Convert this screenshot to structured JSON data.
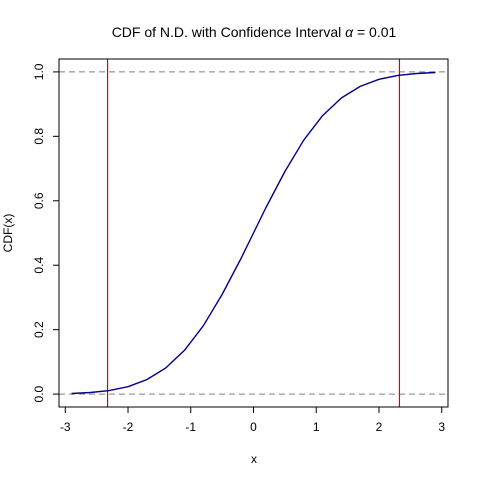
{
  "chart_data": {
    "type": "line",
    "title_prefix": "CDF of N.D. with Confidence Interval ",
    "title_symbol": "α",
    "title_suffix": " = 0.01",
    "xlabel": "x",
    "ylabel": "CDF(x)",
    "xlim": [
      -3.1,
      3.1
    ],
    "ylim": [
      -0.04,
      1.04
    ],
    "x_ticks": [
      -3,
      -2,
      -1,
      0,
      1,
      2,
      3
    ],
    "x_tick_labels": [
      "-3",
      "-2",
      "-1",
      "0",
      "1",
      "2",
      "3"
    ],
    "y_ticks": [
      0.0,
      0.2,
      0.4,
      0.6,
      0.8,
      1.0
    ],
    "y_tick_labels": [
      "0.0",
      "0.2",
      "0.4",
      "0.6",
      "0.8",
      "1.0"
    ],
    "series": [
      {
        "color": "#00008b",
        "x": [
          -2.9,
          -2.6,
          -2.3,
          -2.0,
          -1.7,
          -1.4,
          -1.1,
          -0.8,
          -0.5,
          -0.2,
          0.0,
          0.2,
          0.5,
          0.8,
          1.1,
          1.4,
          1.7,
          2.0,
          2.3,
          2.6,
          2.9
        ],
        "y": [
          0.002,
          0.005,
          0.011,
          0.023,
          0.045,
          0.081,
          0.136,
          0.212,
          0.309,
          0.421,
          0.5,
          0.579,
          0.691,
          0.788,
          0.864,
          0.919,
          0.955,
          0.977,
          0.989,
          0.995,
          0.998
        ]
      }
    ],
    "horizontal_reference_lines": {
      "values": [
        0,
        1
      ],
      "color": "#808080",
      "style": "dashed"
    },
    "vertical_reference_lines": {
      "values": [
        -2.326,
        2.326
      ],
      "color": "#e00000"
    }
  }
}
